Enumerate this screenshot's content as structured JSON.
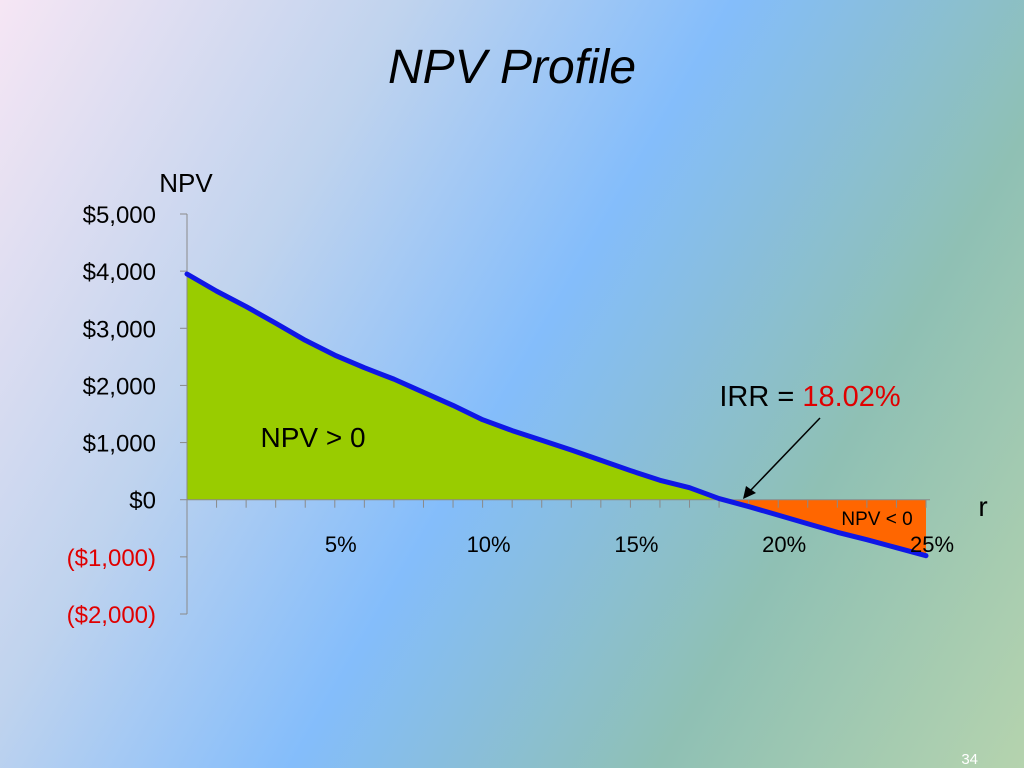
{
  "slide": {
    "title": "NPV Profile",
    "page_number": "34"
  },
  "chart_data": {
    "type": "area",
    "ylabel": "NPV",
    "xlabel": "r",
    "ylim": [
      -2000,
      5000
    ],
    "xlim": [
      0,
      25
    ],
    "y_ticks": [
      {
        "value": 5000,
        "label": "$5,000"
      },
      {
        "value": 4000,
        "label": "$4,000"
      },
      {
        "value": 3000,
        "label": "$3,000"
      },
      {
        "value": 2000,
        "label": "$2,000"
      },
      {
        "value": 1000,
        "label": "$1,000"
      },
      {
        "value": 0,
        "label": "$0"
      },
      {
        "value": -1000,
        "label": "($1,000)"
      },
      {
        "value": -2000,
        "label": "($2,000)"
      }
    ],
    "x_ticks": [
      {
        "value": 5,
        "label": "5%"
      },
      {
        "value": 10,
        "label": "10%"
      },
      {
        "value": 15,
        "label": "15%"
      },
      {
        "value": 20,
        "label": "20%"
      },
      {
        "value": 25,
        "label": "25%"
      }
    ],
    "x": [
      0,
      1,
      2,
      3,
      4,
      5,
      6,
      7,
      8,
      9,
      10,
      11,
      12,
      13,
      14,
      15,
      16,
      17,
      18,
      19,
      20,
      21,
      22,
      23,
      24,
      25
    ],
    "npv": [
      3950,
      3650,
      3380,
      3090,
      2790,
      2530,
      2310,
      2110,
      1880,
      1650,
      1400,
      1210,
      1040,
      870,
      690,
      510,
      340,
      210,
      20,
      -120,
      -270,
      -420,
      -570,
      -700,
      -840,
      -980
    ],
    "irr": 18.02,
    "annotations": {
      "positive_region": "NPV > 0",
      "negative_region": "NPV < 0",
      "irr_label": "IRR = ",
      "irr_value": "18.02%"
    },
    "colors": {
      "line": "#0f17e6",
      "positive_fill": "#99cc00",
      "negative_fill": "#ff6600",
      "negative_label": "#e00000",
      "irr_value": "#e00000"
    }
  }
}
